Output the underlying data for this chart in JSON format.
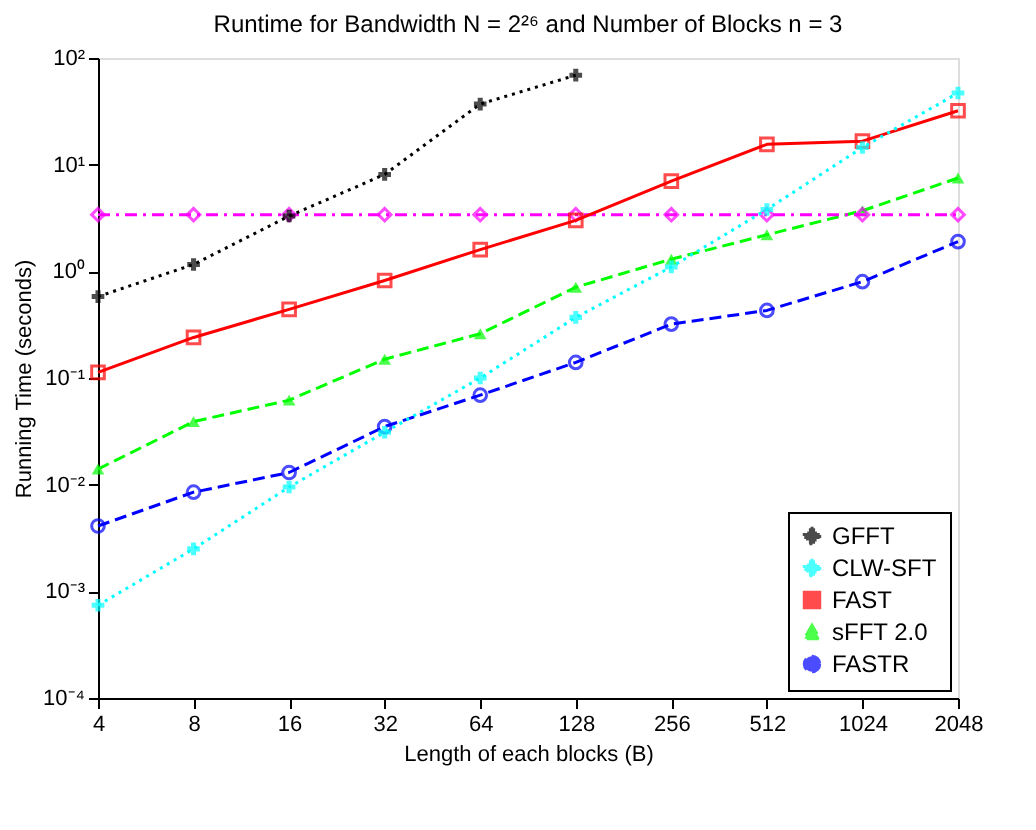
{
  "chart_data": {
    "type": "line",
    "title": "Runtime for Bandwidth N = 2²⁶ and Number of Blocks n = 3",
    "xlabel": "Length of each blocks (B)",
    "ylabel": "Running Time (seconds)",
    "x": [
      4,
      8,
      16,
      32,
      64,
      128,
      256,
      512,
      1024,
      2048
    ],
    "log": "xy",
    "xlim": [
      4,
      2048
    ],
    "xticks": [
      4,
      8,
      16,
      32,
      64,
      128,
      256,
      512,
      1024,
      2048
    ],
    "ylim": [
      0.0001,
      100
    ],
    "yticks": [
      {
        "value": 0.0001,
        "label": "10⁻⁴"
      },
      {
        "value": 0.001,
        "label": "10⁻³"
      },
      {
        "value": 0.01,
        "label": "10⁻²"
      },
      {
        "value": 0.1,
        "label": "10⁻¹"
      },
      {
        "value": 1,
        "label": "10⁰"
      },
      {
        "value": 10,
        "label": "10¹"
      },
      {
        "value": 100,
        "label": "10²"
      }
    ],
    "grid": false,
    "legend": "bottom right",
    "series": [
      {
        "name": "GFFT",
        "color": "#000000",
        "marker": "cross",
        "line_style": "dotted",
        "values": [
          0.58,
          1.16,
          3.3,
          8.1,
          37,
          69,
          null,
          null,
          null,
          null
        ]
      },
      {
        "name": "CLW-SFT",
        "color": "#00ffff",
        "marker": "cross",
        "line_style": "dotted",
        "values": [
          0.00074,
          0.0025,
          0.0095,
          0.031,
          0.1,
          0.37,
          1.1,
          3.8,
          14.5,
          47
        ]
      },
      {
        "name": "FAST",
        "color": "#ff0000",
        "marker": "square",
        "line_style": "solid",
        "values": [
          0.113,
          0.24,
          0.44,
          0.82,
          1.6,
          3.0,
          7.0,
          15.5,
          16.6,
          32
        ]
      },
      {
        "color": "#ff00ff",
        "marker": "diamond",
        "line_style": "dashdot",
        "values": [
          3.4,
          3.4,
          3.4,
          3.4,
          3.4,
          3.4,
          3.4,
          3.4,
          3.4,
          3.4
        ]
      },
      {
        "name": "sFFT 2.0",
        "color": "#00ff00",
        "marker": "triangle",
        "line_style": "dashed",
        "values": [
          0.014,
          0.039,
          0.062,
          0.15,
          0.26,
          0.71,
          1.3,
          2.2,
          3.7,
          7.5
        ]
      },
      {
        "name": "FASTR",
        "color": "#0000ff",
        "marker": "circle",
        "line_style": "dashed",
        "values": [
          0.0041,
          0.0085,
          0.013,
          0.035,
          0.069,
          0.14,
          0.32,
          0.43,
          0.8,
          1.9
        ]
      }
    ]
  }
}
